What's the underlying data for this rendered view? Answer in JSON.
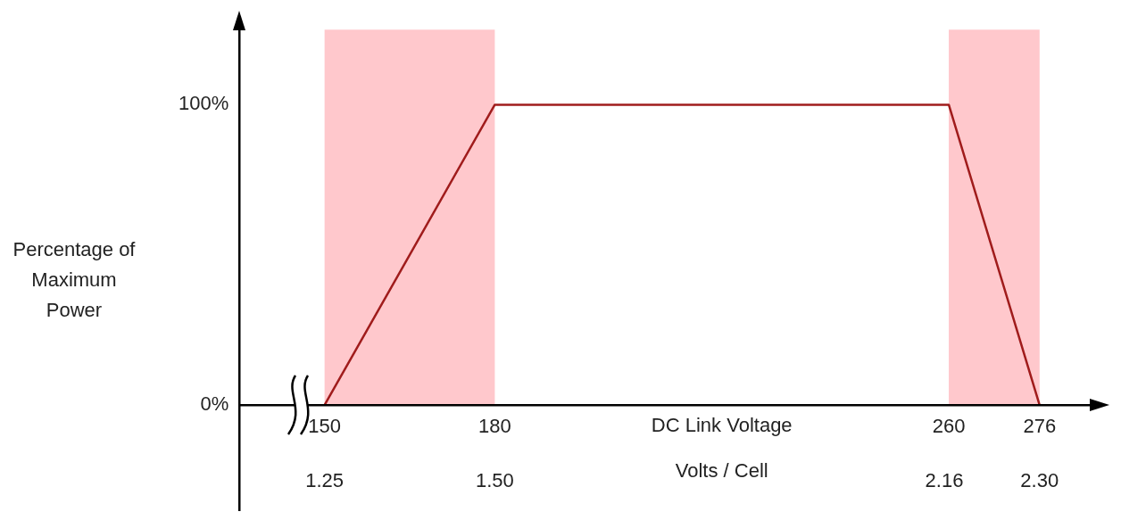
{
  "chart_data": {
    "type": "line",
    "xlabel": "DC Link Voltage",
    "x2label": "Volts / Cell",
    "ylabel": "Percentage of Maximum Power",
    "x": [
      150,
      180,
      260,
      276
    ],
    "series": [
      {
        "color": "#a01c1c",
        "values": [
          0,
          100,
          100,
          0
        ]
      }
    ],
    "xlim": [
      135,
      285
    ],
    "xticks": [
      150,
      180,
      260,
      276
    ],
    "x2lim": [
      1.125,
      2.375
    ],
    "x2ticks": [
      1.25,
      {
        "value": 1.5,
        "label": "1.50"
      },
      2.16,
      {
        "value": 2.3,
        "label": "2.30"
      }
    ],
    "ylim": [
      0,
      125
    ],
    "yticks": [
      {
        "value": 0,
        "label": "0%"
      },
      {
        "value": 100,
        "label": "100%"
      }
    ],
    "bands": [
      {
        "axis": "x",
        "from": 150,
        "to": 180,
        "color": "#ffc8cc"
      },
      {
        "axis": "x",
        "from": 260,
        "to": 276,
        "color": "#ffc8cc"
      }
    ],
    "grid": false,
    "legend": false,
    "marker": "none",
    "line_style": "solid"
  }
}
